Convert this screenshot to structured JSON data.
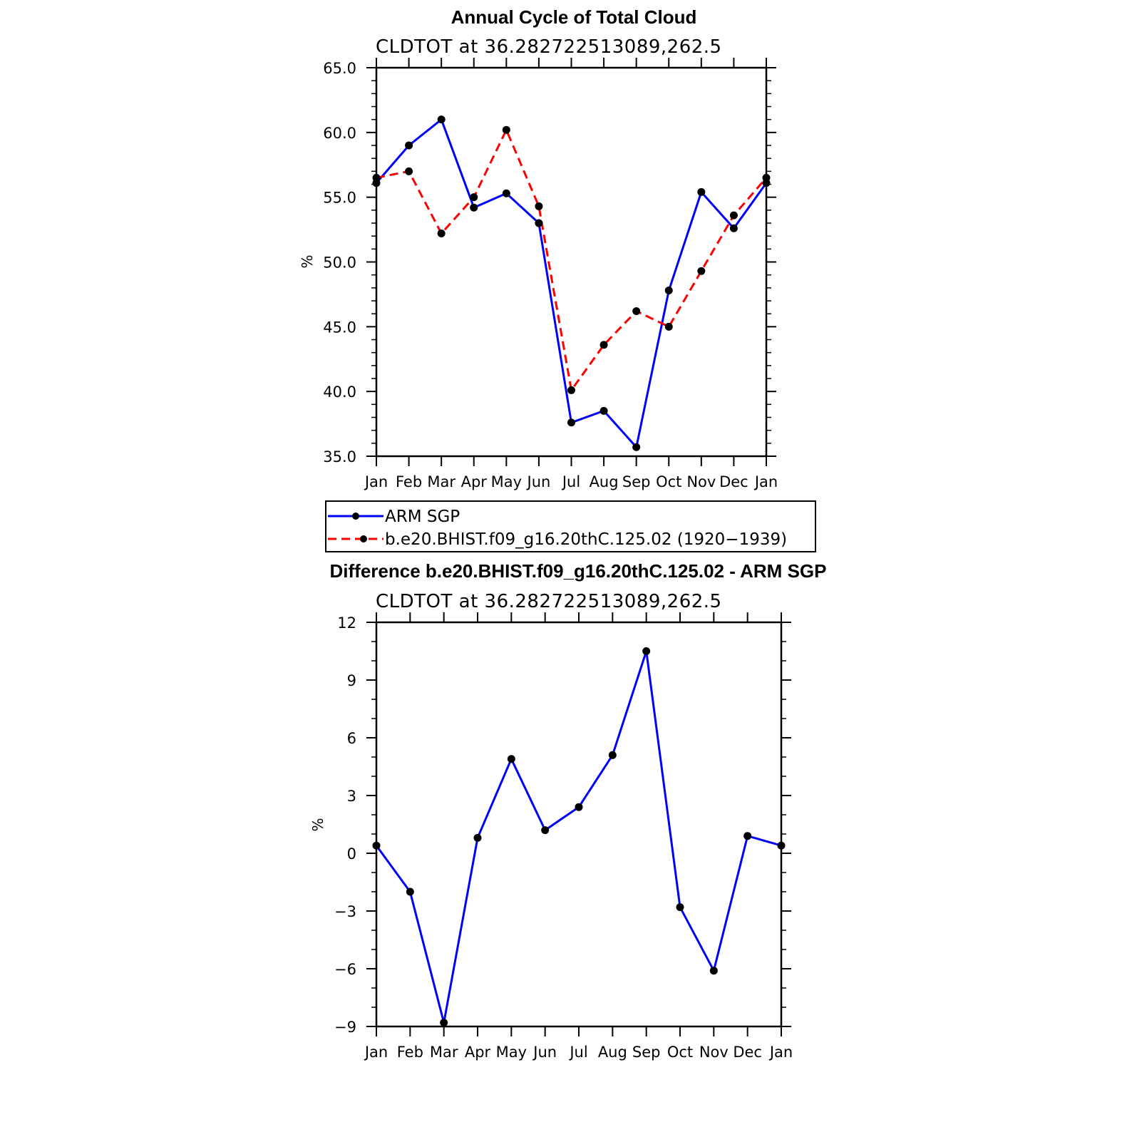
{
  "chart_data": [
    {
      "type": "line",
      "title": "Annual Cycle of Total Cloud",
      "subtitle": "CLDTOT at 36.282722513089,262.5",
      "xlabel": "",
      "ylabel": "%",
      "categories": [
        "Jan",
        "Feb",
        "Mar",
        "Apr",
        "May",
        "Jun",
        "Jul",
        "Aug",
        "Sep",
        "Oct",
        "Nov",
        "Dec",
        "Jan"
      ],
      "ylim": [
        35.0,
        65.0
      ],
      "yticks": [
        35.0,
        40.0,
        45.0,
        50.0,
        55.0,
        60.0,
        65.0
      ],
      "ytick_labels": [
        "35.0",
        "40.0",
        "45.0",
        "50.0",
        "55.0",
        "60.0",
        "65.0"
      ],
      "series": [
        {
          "name": "ARM SGP",
          "color": "#0000ff",
          "style": "solid",
          "values": [
            56.1,
            59.0,
            61.0,
            54.2,
            55.3,
            53.0,
            37.6,
            38.5,
            35.7,
            47.8,
            55.4,
            52.6,
            56.1
          ]
        },
        {
          "name": "b.e20.BHIST.f09_g16.20thC.125.02 (1920−1939)",
          "color": "#ff0000",
          "style": "dashed",
          "values": [
            56.5,
            57.0,
            52.2,
            55.0,
            60.2,
            54.3,
            40.1,
            43.6,
            46.2,
            45.0,
            49.3,
            53.6,
            56.5
          ]
        }
      ],
      "legend_location": "below"
    },
    {
      "type": "line",
      "title": "Difference b.e20.BHIST.f09_g16.20thC.125.02 - ARM SGP",
      "subtitle": "CLDTOT at 36.282722513089,262.5",
      "xlabel": "",
      "ylabel": "%",
      "categories": [
        "Jan",
        "Feb",
        "Mar",
        "Apr",
        "May",
        "Jun",
        "Jul",
        "Aug",
        "Sep",
        "Oct",
        "Nov",
        "Dec",
        "Jan"
      ],
      "ylim": [
        -9,
        12
      ],
      "yticks": [
        -9,
        -6,
        -3,
        0,
        3,
        6,
        9,
        12
      ],
      "ytick_labels": [
        "−9",
        "−6",
        "−3",
        "0",
        "3",
        "6",
        "9",
        "12"
      ],
      "series": [
        {
          "name": "Difference",
          "color": "#0000ff",
          "style": "solid",
          "values": [
            0.4,
            -2.0,
            -8.8,
            0.8,
            4.9,
            1.2,
            2.4,
            5.1,
            10.5,
            -2.8,
            -6.1,
            0.9,
            0.4
          ]
        }
      ]
    }
  ]
}
